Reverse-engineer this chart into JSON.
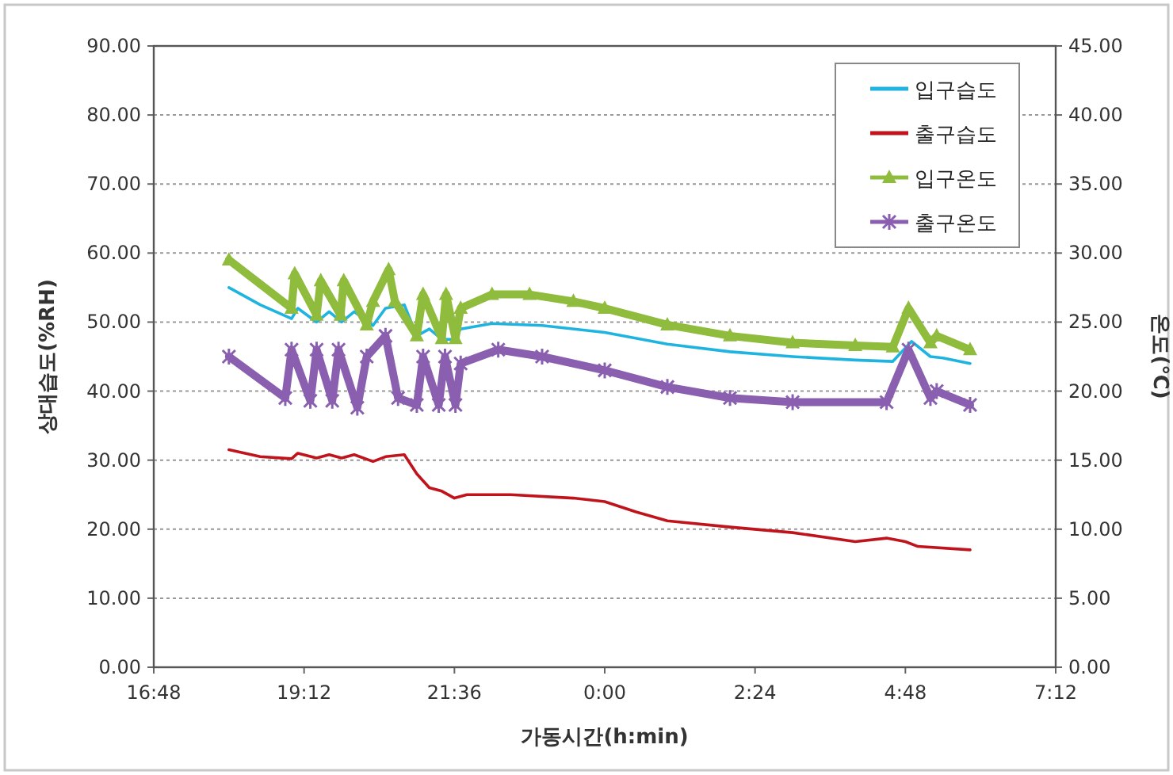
{
  "chart_data": {
    "type": "line",
    "xlabel": "가동시간(h:min)",
    "ylabel": "상대습도(%RH)",
    "y2label": "온도(℃)",
    "xlim": [
      "2000-01-01T16:48",
      "2000-01-02T07:12"
    ],
    "xticks": [
      {
        "value": "2000-01-01T16:48",
        "label": "16:48"
      },
      {
        "value": "2000-01-01T19:12",
        "label": "19:12"
      },
      {
        "value": "2000-01-01T21:36",
        "label": "21:36"
      },
      {
        "value": "2000-01-02T00:00",
        "label": "0:00"
      },
      {
        "value": "2000-01-02T02:24",
        "label": "2:24"
      },
      {
        "value": "2000-01-02T04:48",
        "label": "4:48"
      },
      {
        "value": "2000-01-02T07:12",
        "label": "7:12"
      }
    ],
    "ylim": [
      0,
      90
    ],
    "yticks": [
      {
        "value": 0,
        "label": "0.00"
      },
      {
        "value": 10,
        "label": "10.00"
      },
      {
        "value": 20,
        "label": "20.00"
      },
      {
        "value": 30,
        "label": "30.00"
      },
      {
        "value": 40,
        "label": "40.00"
      },
      {
        "value": 50,
        "label": "50.00"
      },
      {
        "value": 60,
        "label": "60.00"
      },
      {
        "value": 70,
        "label": "70.00"
      },
      {
        "value": 80,
        "label": "80.00"
      },
      {
        "value": 90,
        "label": "90.00"
      }
    ],
    "y2lim": [
      0,
      45
    ],
    "y2ticks": [
      {
        "value": 0,
        "label": "0.00"
      },
      {
        "value": 5,
        "label": "5.00"
      },
      {
        "value": 10,
        "label": "10.00"
      },
      {
        "value": 15,
        "label": "15.00"
      },
      {
        "value": 20,
        "label": "20.00"
      },
      {
        "value": 25,
        "label": "25.00"
      },
      {
        "value": 30,
        "label": "30.00"
      },
      {
        "value": 35,
        "label": "35.00"
      },
      {
        "value": 40,
        "label": "40.00"
      },
      {
        "value": 45,
        "label": "45.00"
      }
    ],
    "grid": "y",
    "legend": "top right",
    "series": [
      {
        "name": "입구습도",
        "color": "#1fb4e0",
        "marker": "none",
        "x": [
          "2000-01-01T18:00",
          "2000-01-01T18:30",
          "2000-01-01T19:00",
          "2000-01-01T19:06",
          "2000-01-01T19:24",
          "2000-01-01T19:36",
          "2000-01-01T19:48",
          "2000-01-01T20:00",
          "2000-01-01T20:18",
          "2000-01-01T20:30",
          "2000-01-01T20:48",
          "2000-01-01T21:00",
          "2000-01-01T21:12",
          "2000-01-01T21:24",
          "2000-01-01T21:36",
          "2000-01-01T21:42",
          "2000-01-01T22:12",
          "2000-01-01T23:00",
          "2000-01-02T00:00",
          "2000-01-02T01:00",
          "2000-01-02T02:00",
          "2000-01-02T03:00",
          "2000-01-02T04:00",
          "2000-01-02T04:36",
          "2000-01-02T04:54",
          "2000-01-02T05:12",
          "2000-01-02T05:24",
          "2000-01-02T05:50"
        ],
        "values": [
          55,
          52.5,
          50.5,
          52,
          50,
          51.5,
          50,
          51.5,
          49.5,
          52,
          52.5,
          48,
          49,
          47.5,
          47.5,
          49,
          49.8,
          49.5,
          48.5,
          46.8,
          45.7,
          45,
          44.5,
          44.3,
          47.2,
          45,
          44.8,
          44
        ]
      },
      {
        "name": "출구습도",
        "color": "#c0141c",
        "marker": "none",
        "x": [
          "2000-01-01T18:00",
          "2000-01-01T18:30",
          "2000-01-01T19:00",
          "2000-01-01T19:06",
          "2000-01-01T19:24",
          "2000-01-01T19:36",
          "2000-01-01T19:48",
          "2000-01-01T20:00",
          "2000-01-01T20:18",
          "2000-01-01T20:30",
          "2000-01-01T20:48",
          "2000-01-01T21:00",
          "2000-01-01T21:12",
          "2000-01-01T21:24",
          "2000-01-01T21:36",
          "2000-01-01T21:48",
          "2000-01-01T22:30",
          "2000-01-01T23:30",
          "2000-01-02T00:00",
          "2000-01-02T00:30",
          "2000-01-02T01:00",
          "2000-01-02T02:00",
          "2000-01-02T03:00",
          "2000-01-02T04:00",
          "2000-01-02T04:30",
          "2000-01-02T04:48",
          "2000-01-02T05:00",
          "2000-01-02T05:50"
        ],
        "values": [
          31.5,
          30.5,
          30.2,
          31,
          30.3,
          30.8,
          30.3,
          30.8,
          29.8,
          30.5,
          30.8,
          28,
          26,
          25.5,
          24.5,
          25,
          25,
          24.5,
          24,
          22.5,
          21.2,
          20.3,
          19.5,
          18.2,
          18.7,
          18.2,
          17.5,
          17
        ]
      },
      {
        "name": "입구온도",
        "color": "#8fbc3c",
        "marker": "triangle",
        "axis": "y2",
        "x": [
          "2000-01-01T18:00",
          "2000-01-01T19:00",
          "2000-01-01T19:03",
          "2000-01-01T19:24",
          "2000-01-01T19:28",
          "2000-01-01T19:47",
          "2000-01-01T19:50",
          "2000-01-01T20:12",
          "2000-01-01T20:18",
          "2000-01-01T20:33",
          "2000-01-01T20:39",
          "2000-01-01T21:00",
          "2000-01-01T21:06",
          "2000-01-01T21:24",
          "2000-01-01T21:28",
          "2000-01-01T21:37",
          "2000-01-01T21:42",
          "2000-01-01T22:12",
          "2000-01-01T22:48",
          "2000-01-01T23:30",
          "2000-01-02T00:00",
          "2000-01-02T01:00",
          "2000-01-02T02:00",
          "2000-01-02T03:00",
          "2000-01-02T04:00",
          "2000-01-02T04:36",
          "2000-01-02T04:51",
          "2000-01-02T05:12",
          "2000-01-02T05:18",
          "2000-01-02T05:50"
        ],
        "values": [
          29.5,
          26,
          28.5,
          25.5,
          28,
          25.5,
          28,
          24.8,
          26.5,
          28.8,
          26.5,
          24,
          27,
          23.8,
          27,
          23.8,
          26,
          27,
          27,
          26.5,
          26,
          24.8,
          24,
          23.5,
          23.3,
          23.2,
          26,
          23.5,
          24,
          23
        ]
      },
      {
        "name": "출구온도",
        "color": "#8a5fb0",
        "marker": "cross",
        "axis": "y2",
        "x": [
          "2000-01-01T18:00",
          "2000-01-01T18:54",
          "2000-01-01T19:00",
          "2000-01-01T19:18",
          "2000-01-01T19:24",
          "2000-01-01T19:39",
          "2000-01-01T19:45",
          "2000-01-01T20:03",
          "2000-01-01T20:12",
          "2000-01-01T20:30",
          "2000-01-01T20:42",
          "2000-01-01T21:00",
          "2000-01-01T21:06",
          "2000-01-01T21:21",
          "2000-01-01T21:27",
          "2000-01-01T21:37",
          "2000-01-01T21:42",
          "2000-01-01T22:18",
          "2000-01-01T23:00",
          "2000-01-02T00:00",
          "2000-01-02T01:00",
          "2000-01-02T02:00",
          "2000-01-02T03:00",
          "2000-01-02T04:30",
          "2000-01-02T04:51",
          "2000-01-02T05:12",
          "2000-01-02T05:18",
          "2000-01-02T05:50"
        ],
        "values": [
          22.5,
          19.5,
          23,
          19.3,
          23,
          19.3,
          23,
          18.8,
          22.5,
          24,
          19.5,
          19,
          22.5,
          19,
          22.5,
          19,
          22,
          23,
          22.5,
          21.5,
          20.3,
          19.5,
          19.2,
          19.2,
          23,
          19.5,
          20,
          19
        ]
      }
    ]
  }
}
